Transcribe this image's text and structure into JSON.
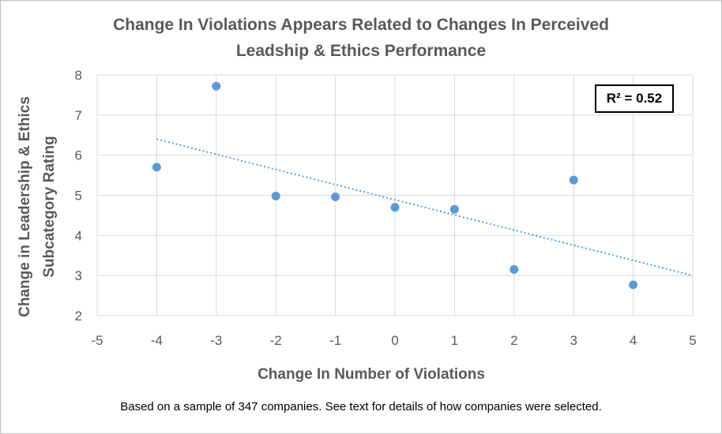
{
  "chart_data": {
    "type": "scatter",
    "title_line1": "Change In Violations  Appears Related to Changes In Perceived",
    "title_line2": "Leadship & Ethics Performance",
    "xlabel": "Change In Number of Violations",
    "ylabel_line1": "Change in Leadership & Ethics",
    "ylabel_line2": "Subcategory Rating",
    "xlim": [
      -5,
      5
    ],
    "ylim": [
      2,
      8
    ],
    "x_ticks": [
      -5,
      -4,
      -3,
      -2,
      -1,
      0,
      1,
      2,
      3,
      4,
      5
    ],
    "y_ticks": [
      2,
      3,
      4,
      5,
      6,
      7,
      8
    ],
    "grid": "vertical and horizontal",
    "series": [
      {
        "points": [
          {
            "x": -4,
            "y": 5.7
          },
          {
            "x": -3,
            "y": 7.72
          },
          {
            "x": -2,
            "y": 4.98
          },
          {
            "x": -1,
            "y": 4.96
          },
          {
            "x": 0,
            "y": 4.7
          },
          {
            "x": 1,
            "y": 4.65
          },
          {
            "x": 2,
            "y": 3.15
          },
          {
            "x": 3,
            "y": 5.38
          },
          {
            "x": 4,
            "y": 2.77
          }
        ],
        "color": "#5b9bd5"
      }
    ],
    "trendline": {
      "type": "linear",
      "from": {
        "x": -4,
        "y": 6.4
      },
      "to": {
        "x": 5,
        "y": 3.0
      },
      "style": "dotted",
      "color": "#5b9bd5"
    },
    "r_squared_label": "R² = 0.52"
  },
  "footnote": "Based on a sample of 347 companies. See text for details of how companies were selected."
}
